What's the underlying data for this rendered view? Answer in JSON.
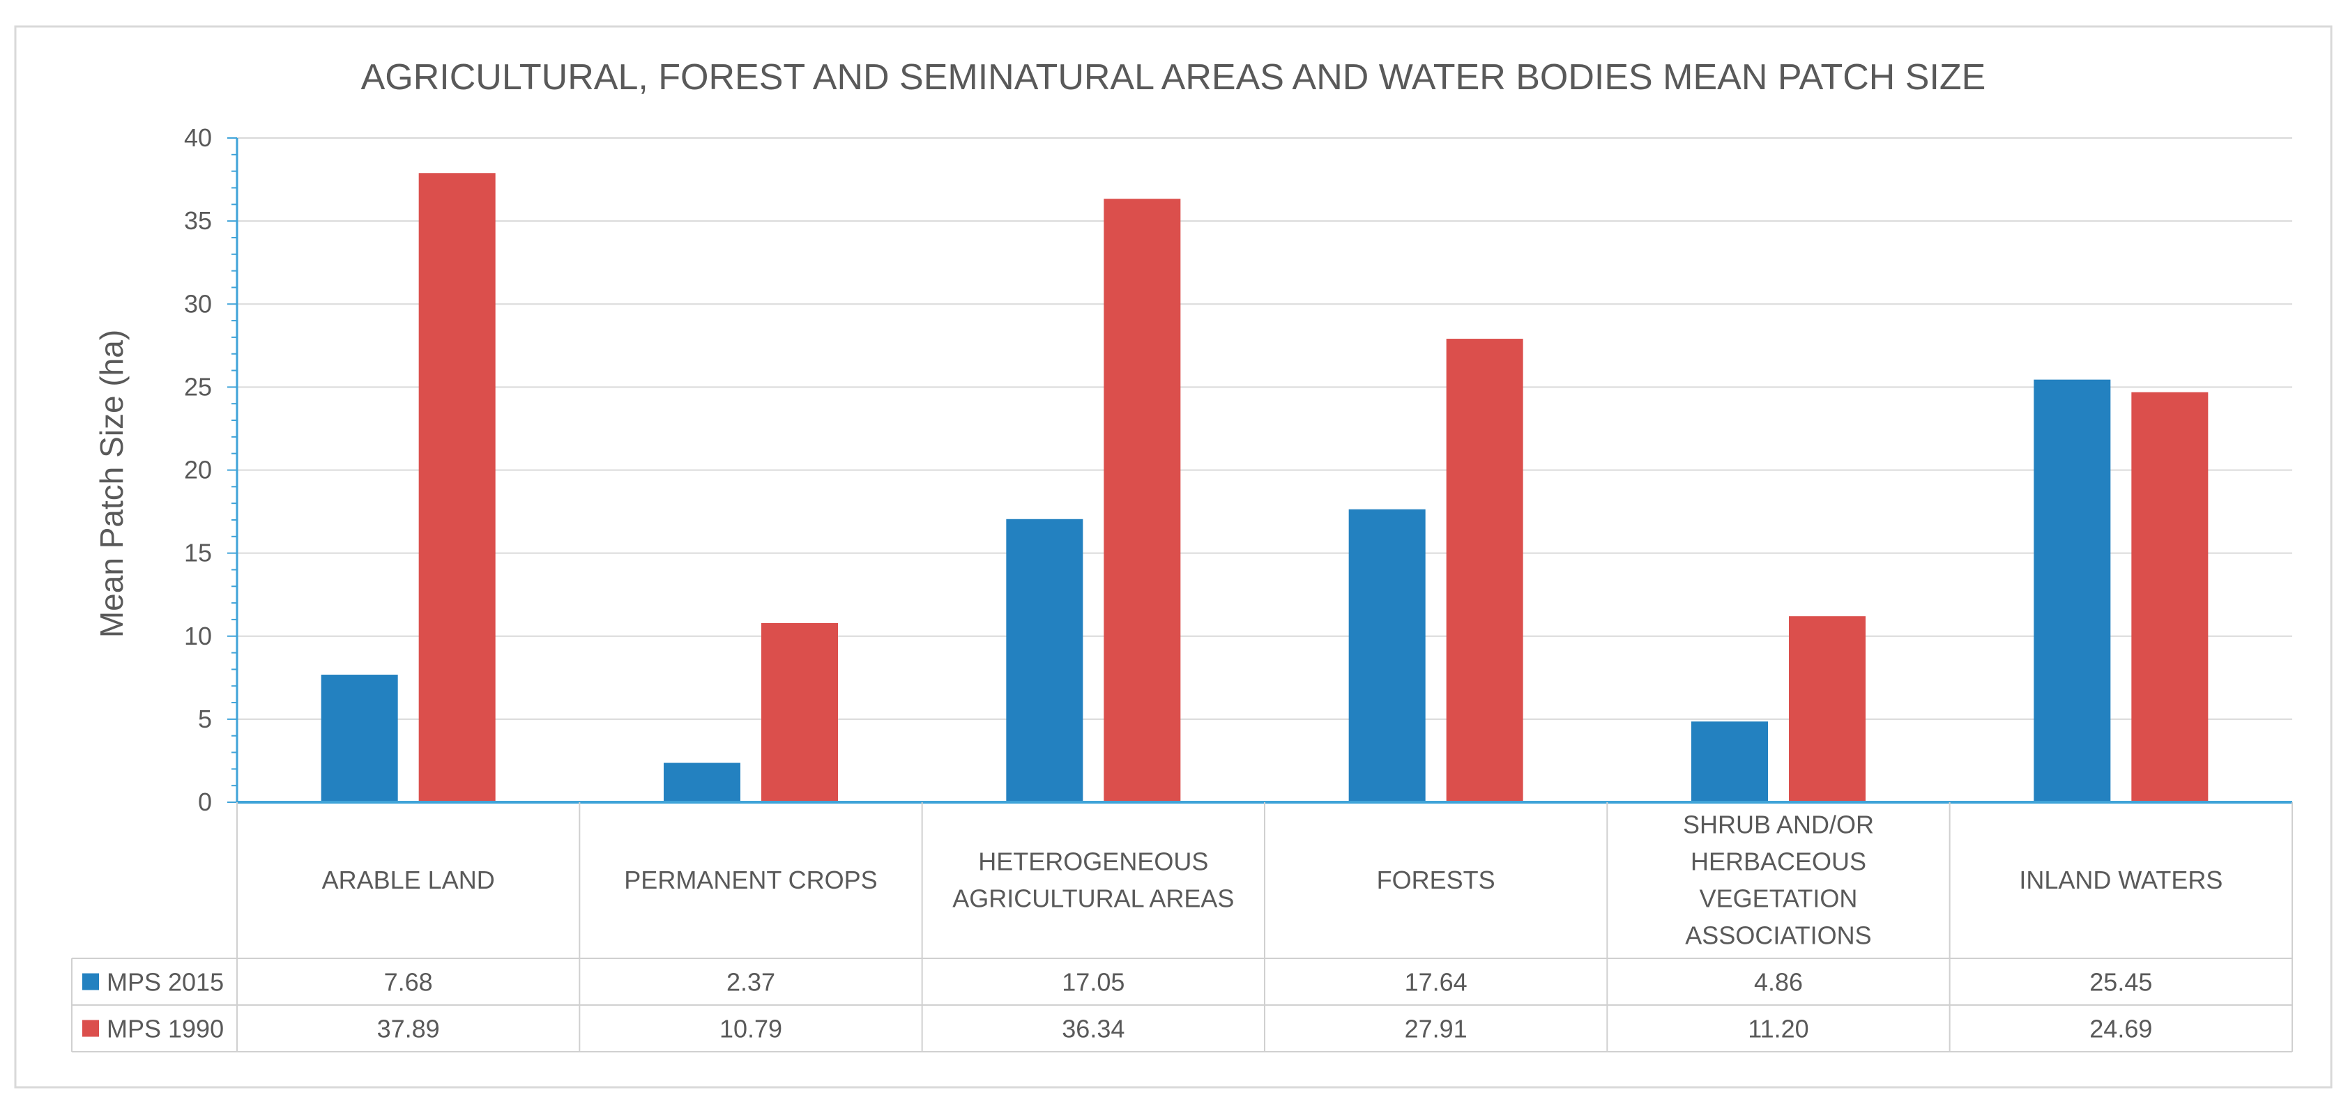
{
  "chart_data": {
    "type": "bar",
    "title": "AGRICULTURAL, FOREST AND SEMINATURAL AREAS AND WATER BODIES MEAN PATCH SIZE",
    "xlabel": "",
    "ylabel": "Mean Patch Size (ha)",
    "ylim": [
      0,
      40
    ],
    "yticks": [
      0,
      5,
      10,
      15,
      20,
      25,
      30,
      35,
      40
    ],
    "grid": true,
    "legend": "data-table-left",
    "categories": [
      [
        "ARABLE LAND"
      ],
      [
        "PERMANENT CROPS"
      ],
      [
        "HETEROGENEOUS",
        "AGRICULTURAL AREAS"
      ],
      [
        "FORESTS"
      ],
      [
        "SHRUB AND/OR",
        "HERBACEOUS",
        "VEGETATION",
        "ASSOCIATIONS"
      ],
      [
        "INLAND WATERS"
      ]
    ],
    "series": [
      {
        "name": "MPS 2015",
        "color": "#2381C0",
        "values": [
          7.68,
          2.37,
          17.05,
          17.64,
          4.86,
          25.45
        ],
        "labels": [
          "7.68",
          "2.37",
          "17.05",
          "17.64",
          "4.86",
          "25.45"
        ]
      },
      {
        "name": "MPS 1990",
        "color": "#DB4F4C",
        "values": [
          37.89,
          10.79,
          36.34,
          27.91,
          11.2,
          24.69
        ],
        "labels": [
          "37.89",
          "10.79",
          "36.34",
          "27.91",
          "11.20",
          "24.69"
        ]
      }
    ]
  },
  "colors": {
    "gridline": "#D9D9D9",
    "axis": "#3FA3D8",
    "table_border": "#D0D0D0",
    "text": "#595959",
    "frame": "#D9D9D9"
  }
}
